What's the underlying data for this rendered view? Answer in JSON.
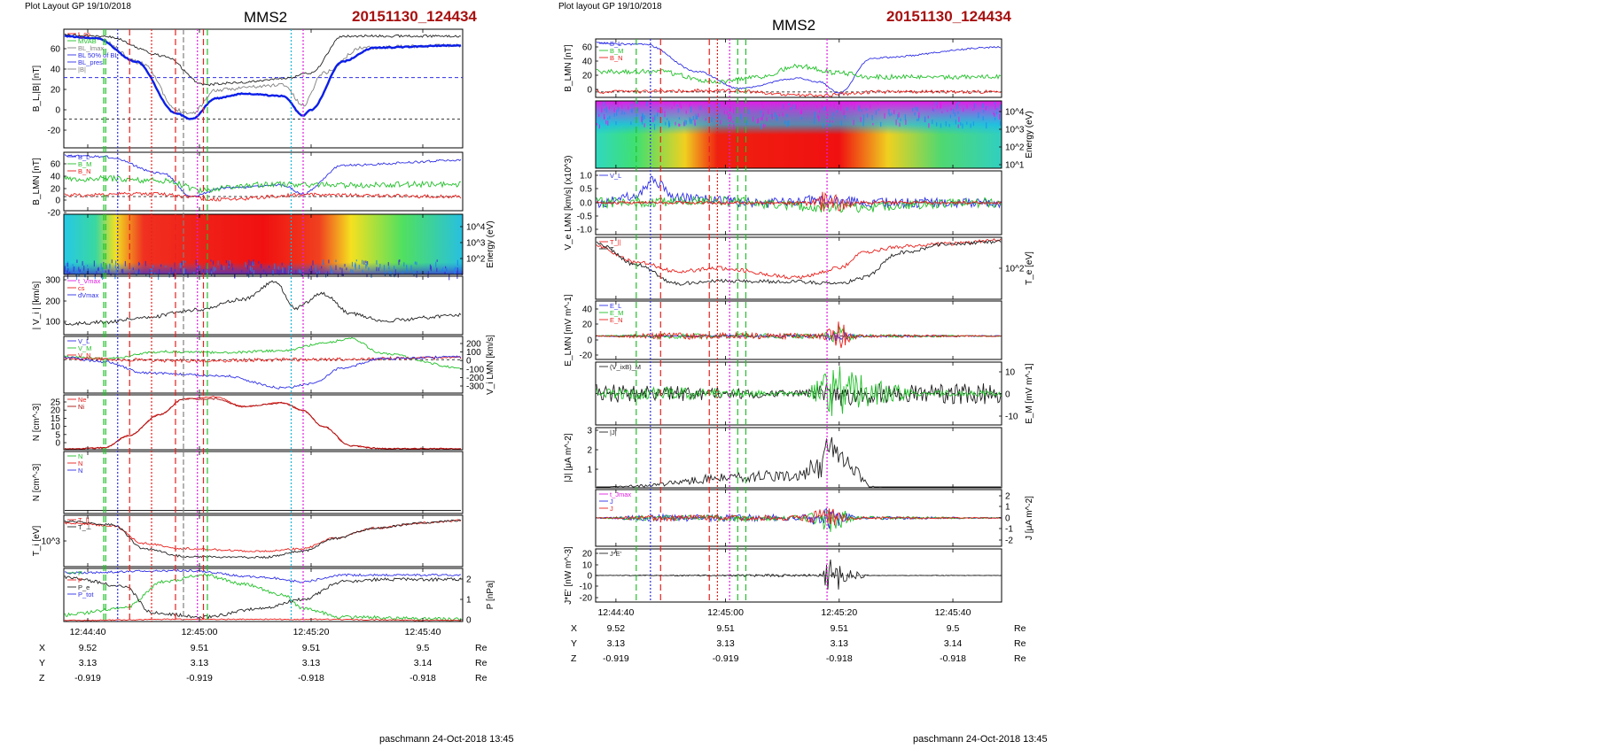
{
  "colors": {
    "red": "#e8201c",
    "green": "#22c02a",
    "blue": "#2e2ee6",
    "black": "#222222",
    "gray": "#808080",
    "magenta": "#e01ee0",
    "cyan": "#18b8d8",
    "darkred": "#a81010",
    "thickblue": "#0b1ee8"
  },
  "left_panel": {
    "header": "Plot Layout GP 19/10/2018",
    "title": "MMS2",
    "event_id": "20151130_124434",
    "footer": "paschmann 24-Oct-2018 13:45",
    "time_ticks": [
      "12:44:40",
      "12:45:00",
      "12:45:20",
      "12:45:40"
    ],
    "coords": [
      {
        "label": "X",
        "values": [
          "9.52",
          "9.51",
          "9.51",
          "9.5"
        ],
        "unit": "Re"
      },
      {
        "label": "Y",
        "values": [
          "3.13",
          "3.13",
          "3.13",
          "3.14"
        ],
        "unit": "Re"
      },
      {
        "label": "Z",
        "values": [
          "-0.919",
          "-0.919",
          "-0.918",
          "-0.918"
        ],
        "unit": "Re"
      }
    ],
    "panels": [
      {
        "ylabel": "B_L,|B| [nT]",
        "yticks": [
          "60",
          "40",
          "20",
          "0",
          "-20"
        ],
        "legend": [
          "t_cs",
          "MVAB",
          "BL_lmax",
          "BL 50% of BL",
          "BL_pres",
          "|B|"
        ]
      },
      {
        "ylabel": "B_LMN [nT]",
        "yticks": [
          "60",
          "40",
          "20",
          "0",
          "-20"
        ],
        "legend": [
          "B_L",
          "B_M",
          "B_N"
        ]
      },
      {
        "ylabel": "Energy (eV)",
        "yticks": [
          "10^4",
          "10^3",
          "10^2"
        ],
        "legend": []
      },
      {
        "ylabel": "| V_i | [km/s]",
        "yticks": [
          "300",
          "200",
          "100"
        ],
        "legend": [
          "t_Vmax",
          "cs",
          "dVmax"
        ]
      },
      {
        "ylabel": "V_i LMN [km/s]",
        "yticks": [
          "200",
          "100",
          "0",
          "-100",
          "-200",
          "-300"
        ],
        "legend": [
          "V_L",
          "V_M",
          "V_N"
        ]
      },
      {
        "ylabel": "N [cm^-3]",
        "yticks": [
          "25",
          "20",
          "15",
          "10",
          "5",
          "0"
        ],
        "legend": [
          "Ne",
          "Ni"
        ]
      },
      {
        "ylabel": "N [cm^-3]",
        "yticks": [],
        "legend": [
          "N",
          "N",
          "N"
        ]
      },
      {
        "ylabel": "T_i [eV]",
        "yticks": [
          "10^3"
        ],
        "legend": [
          "T_||",
          "T_⊥"
        ]
      },
      {
        "ylabel": "P [nPa]",
        "yticks": [
          "2",
          "1",
          "0"
        ],
        "legend": [
          "P",
          "P",
          "P_e",
          "P_tot"
        ]
      }
    ]
  },
  "right_panel": {
    "header": "Plot layout GP 19/10/2018",
    "title": "MMS2",
    "event_id": "20151130_124434",
    "footer": "paschmann 24-Oct-2018 13:45",
    "time_ticks": [
      "12:44:40",
      "12:45:00",
      "12:45:20",
      "12:45:40"
    ],
    "coords": [
      {
        "label": "X",
        "values": [
          "9.52",
          "9.51",
          "9.51",
          "9.5"
        ],
        "unit": "Re"
      },
      {
        "label": "Y",
        "values": [
          "3.13",
          "3.13",
          "3.13",
          "3.14"
        ],
        "unit": "Re"
      },
      {
        "label": "Z",
        "values": [
          "-0.919",
          "-0.919",
          "-0.918",
          "-0.918"
        ],
        "unit": "Re"
      }
    ],
    "panels": [
      {
        "ylabel": "B_LMN [nT]",
        "yticks": [
          "60",
          "40",
          "20",
          "0"
        ],
        "legend": [
          "B_L",
          "B_M",
          "B_N"
        ]
      },
      {
        "ylabel": "Energy (eV)",
        "yticks": [
          "10^4",
          "10^3",
          "10^2",
          "10^1"
        ],
        "legend": []
      },
      {
        "ylabel": "V_e LMN [km/s] (x10^3)",
        "yticks": [
          "1.0",
          "0.5",
          "0.0",
          "-0.5",
          "-1.0"
        ],
        "legend": [
          "V_L"
        ]
      },
      {
        "ylabel": "T_e [eV]",
        "yticks": [
          "10^2"
        ],
        "legend": [
          "T_||",
          "T"
        ]
      },
      {
        "ylabel": "E_LMN [mV m^-1]",
        "yticks": [
          "40",
          "20",
          "0",
          "-20"
        ],
        "legend": [
          "E_L",
          "E_M",
          "E_N"
        ]
      },
      {
        "ylabel": "E_M [mV m^-1]",
        "yticks": [
          "10",
          "0",
          "-10"
        ],
        "legend": [
          "(V_ixB)_M"
        ]
      },
      {
        "ylabel": "|J| [μA m^-2]",
        "yticks": [
          "3",
          "2",
          "1"
        ],
        "legend": [
          "|J|"
        ]
      },
      {
        "ylabel": "J [μA m^-2]",
        "yticks": [
          "2",
          "1",
          "0",
          "-1",
          "-2"
        ],
        "legend": [
          "t_Jmax",
          "J",
          "J"
        ]
      },
      {
        "ylabel": "J*E' [nW m^-3]",
        "yticks": [
          "20",
          "10",
          "0",
          "-10",
          "-20"
        ],
        "legend": [
          "J*E'"
        ]
      }
    ]
  },
  "chart_data": {
    "type": "line",
    "title": "MMS2",
    "subtitle": "20151130_124434",
    "x_ticks": [
      "12:44:40",
      "12:45:00",
      "12:45:20",
      "12:45:40"
    ],
    "B_L_smooth": {
      "x": [
        "12:44:30",
        "12:44:40",
        "12:44:45",
        "12:44:50",
        "12:44:55",
        "12:45:00",
        "12:45:05",
        "12:45:10",
        "12:45:15",
        "12:45:18",
        "12:45:20",
        "12:45:25",
        "12:45:30",
        "12:45:40",
        "12:45:50"
      ],
      "y": [
        72,
        70,
        60,
        35,
        10,
        0,
        15,
        22,
        18,
        2,
        8,
        50,
        62,
        64,
        64
      ]
    },
    "N_i": {
      "x": [
        "12:44:30",
        "12:44:40",
        "12:44:45",
        "12:44:50",
        "12:44:55",
        "12:45:00",
        "12:45:05",
        "12:45:10",
        "12:45:15",
        "12:45:20",
        "12:45:25",
        "12:45:30",
        "12:45:40",
        "12:45:50"
      ],
      "y": [
        0.2,
        0.5,
        4,
        12,
        22,
        26,
        24,
        22,
        23,
        15,
        5,
        1,
        0.5,
        0.5
      ]
    },
    "abs_Vi": {
      "x": [
        "12:44:30",
        "12:44:40",
        "12:44:50",
        "12:45:00",
        "12:45:10",
        "12:45:15",
        "12:45:20",
        "12:45:25",
        "12:45:30",
        "12:45:40",
        "12:45:50"
      ],
      "y": [
        60,
        70,
        100,
        150,
        230,
        300,
        150,
        230,
        120,
        80,
        110
      ]
    },
    "J_abs": {
      "x": [
        "12:44:30",
        "12:44:40",
        "12:44:50",
        "12:45:00",
        "12:45:10",
        "12:45:15",
        "12:45:18",
        "12:45:20",
        "12:45:25",
        "12:45:40",
        "12:45:50"
      ],
      "y": [
        0,
        0.1,
        0.5,
        0.6,
        0.7,
        1.5,
        2.8,
        2.5,
        0.1,
        0,
        0
      ]
    }
  }
}
